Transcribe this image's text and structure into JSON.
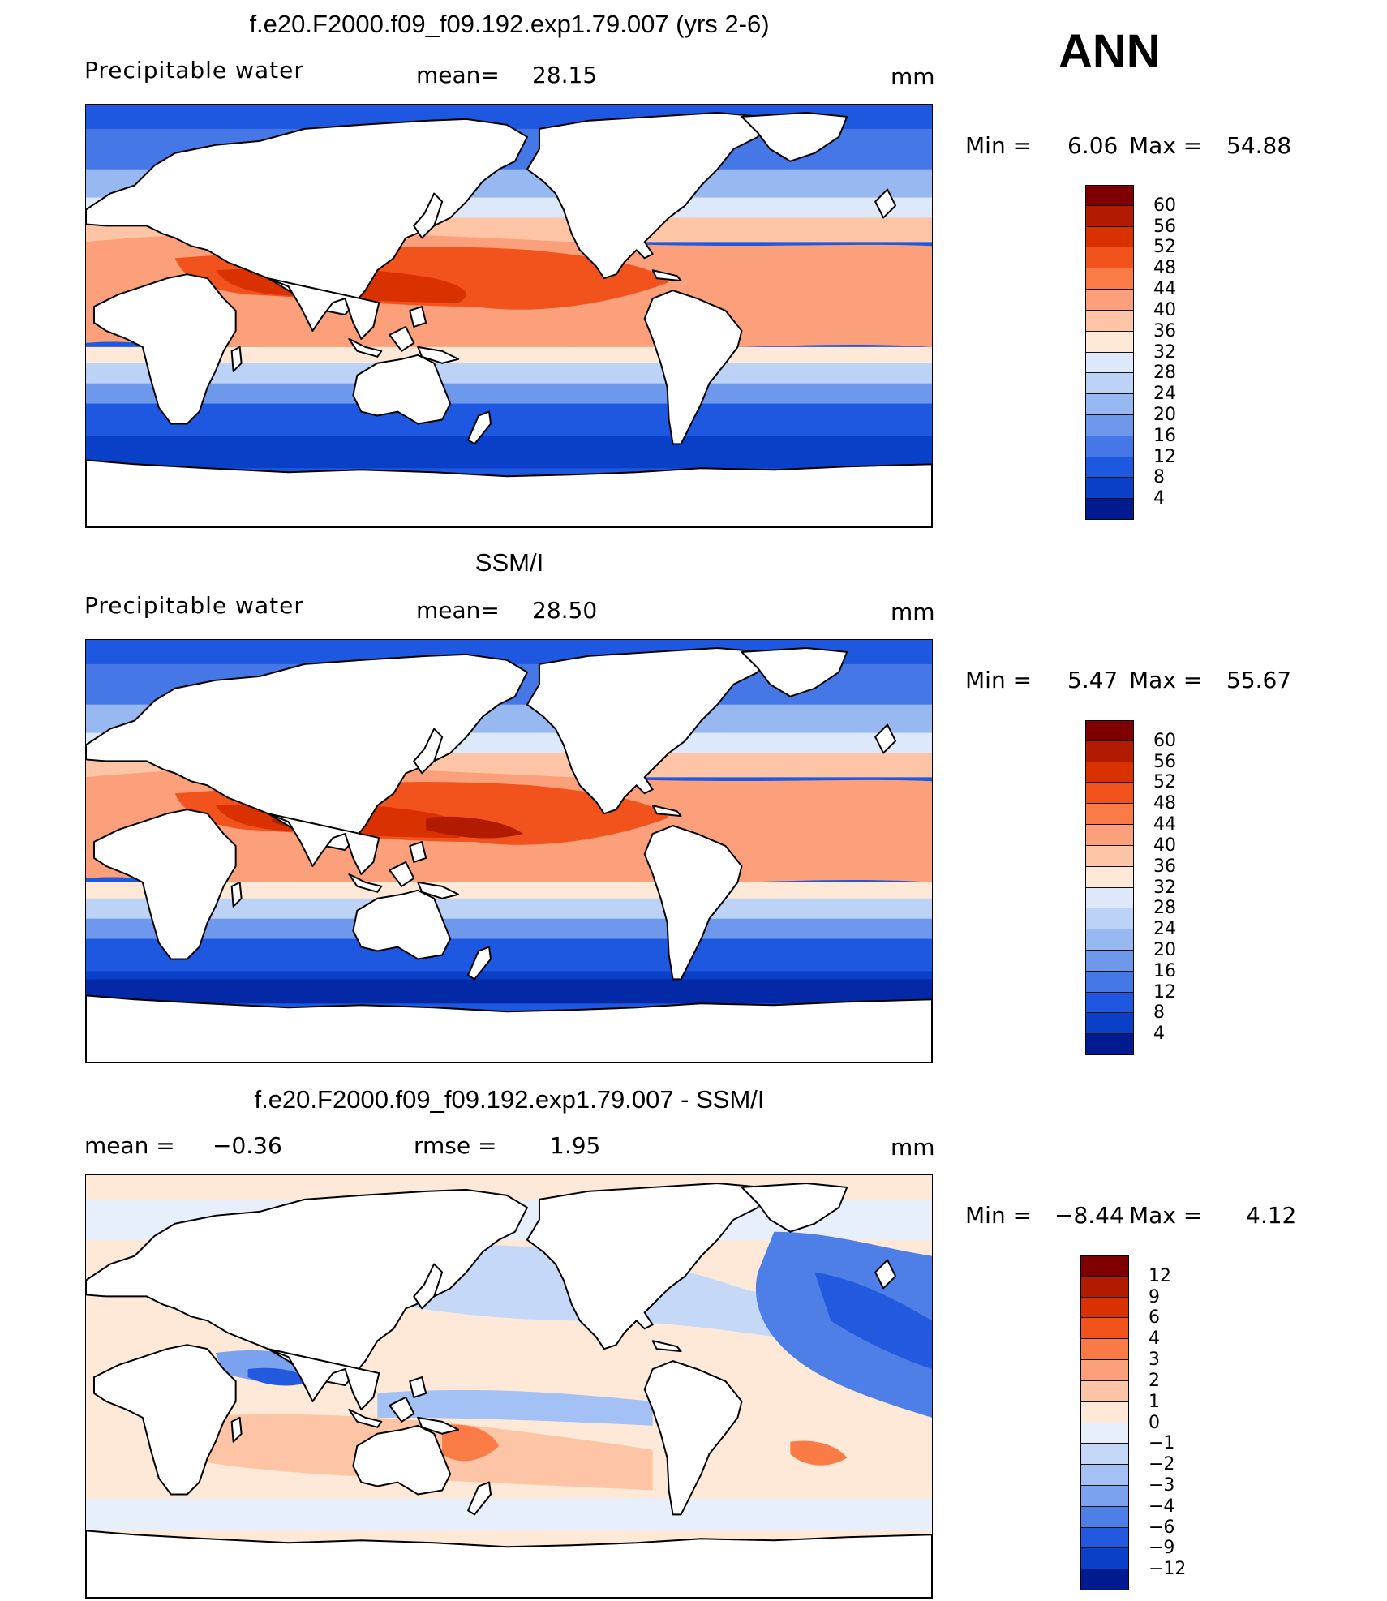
{
  "season": "ANN",
  "panels": [
    {
      "title": "f.e20.F2000.f09_f09.192.exp1.79.007 (yrs 2-6)",
      "variable": "Precipitable water",
      "stat1_label": "mean=",
      "stat1_value": "28.15",
      "units": "mm",
      "min_label": "Min =",
      "min_value": "6.06",
      "max_label": "Max =",
      "max_value": "54.88",
      "levels": [
        "60",
        "56",
        "52",
        "48",
        "44",
        "40",
        "36",
        "32",
        "28",
        "24",
        "20",
        "16",
        "12",
        "8",
        "4"
      ],
      "colors": [
        "#7f0000",
        "#b31b00",
        "#d93200",
        "#f2531c",
        "#fa7b45",
        "#fba07a",
        "#fdc5a5",
        "#fee8d7",
        "#dde9fb",
        "#bcd3f7",
        "#98b8f2",
        "#6e98ec",
        "#4677e6",
        "#1f58e0",
        "#0a3fc8",
        "#001a90"
      ]
    },
    {
      "title": "SSM/I",
      "variable": "Precipitable water",
      "stat1_label": "mean=",
      "stat1_value": "28.50",
      "units": "mm",
      "min_label": "Min =",
      "min_value": "5.47",
      "max_label": "Max =",
      "max_value": "55.67",
      "levels": [
        "60",
        "56",
        "52",
        "48",
        "44",
        "40",
        "36",
        "32",
        "28",
        "24",
        "20",
        "16",
        "12",
        "8",
        "4"
      ],
      "colors": [
        "#7f0000",
        "#b31b00",
        "#d93200",
        "#f2531c",
        "#fa7b45",
        "#fba07a",
        "#fdc5a5",
        "#fee8d7",
        "#dde9fb",
        "#bcd3f7",
        "#98b8f2",
        "#6e98ec",
        "#4677e6",
        "#1f58e0",
        "#0a3fc8",
        "#001a90"
      ]
    },
    {
      "title": "f.e20.F2000.f09_f09.192.exp1.79.007 - SSM/I",
      "stat1_label": "mean =",
      "stat1_value": "−0.36",
      "stat2_label": "rmse =",
      "stat2_value": "1.95",
      "units": "mm",
      "min_label": "Min =",
      "min_value": "−8.44",
      "max_label": "Max =",
      "max_value": "4.12",
      "levels": [
        "12",
        "9",
        "6",
        "4",
        "3",
        "2",
        "1",
        "0",
        "−1",
        "−2",
        "−3",
        "−4",
        "−6",
        "−9",
        "−12"
      ],
      "colors": [
        "#7f0000",
        "#b31b00",
        "#d93200",
        "#f2531c",
        "#fa7b45",
        "#fba07a",
        "#fdc5a5",
        "#fee8d7",
        "#e8effc",
        "#c6d8f8",
        "#a3c1f4",
        "#7aa2ee",
        "#4e7fe7",
        "#2259df",
        "#0a3fc8",
        "#001a90"
      ]
    }
  ]
}
